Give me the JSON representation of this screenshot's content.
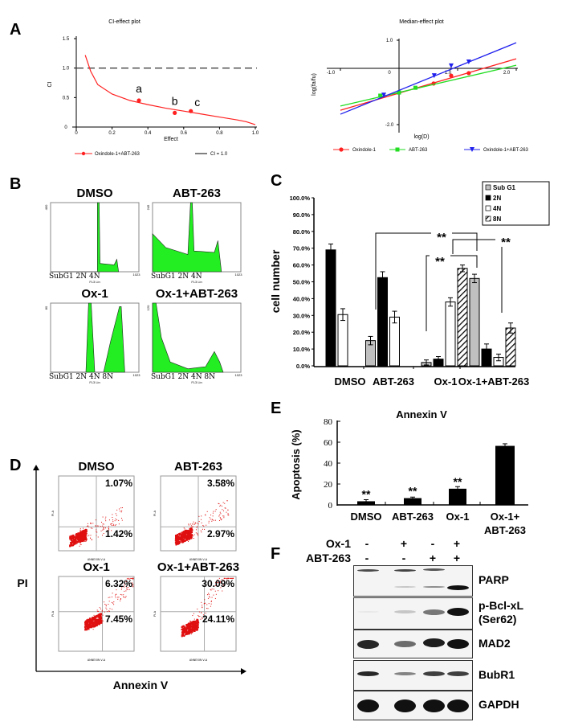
{
  "panels": {
    "A": "A",
    "B": "B",
    "C": "C",
    "D": "D",
    "E": "E",
    "F": "F"
  },
  "colors": {
    "red": "#ff2020",
    "green": "#22dd22",
    "blue": "#2020ee",
    "histogram_fill": "#22ee22",
    "scatter": "#e01010",
    "bar_gray": "#c0c0c0"
  },
  "chart_data": [
    {
      "id": "ci_effect",
      "type": "line",
      "title": "CI-effect plot",
      "xlabel": "Effect",
      "ylabel": "CI",
      "xlim": [
        0,
        1.0
      ],
      "ylim": [
        0,
        1.5
      ],
      "xticks": [
        "0",
        "0.2",
        "0.4",
        "0.6",
        "0.8",
        "1.0"
      ],
      "yticks": [
        "0",
        "0.5",
        "1.0",
        "1.5"
      ],
      "reference_line": {
        "y": 1.0,
        "style": "dashed",
        "legend": "CI = 1.0"
      },
      "series": [
        {
          "name": "Oxindole-1+ABT-263",
          "color": "#ff2020",
          "curve": [
            [
              0.05,
              1.22
            ],
            [
              0.08,
              0.95
            ],
            [
              0.12,
              0.72
            ],
            [
              0.2,
              0.56
            ],
            [
              0.3,
              0.45
            ],
            [
              0.4,
              0.38
            ],
            [
              0.5,
              0.32
            ],
            [
              0.6,
              0.27
            ],
            [
              0.7,
              0.22
            ],
            [
              0.8,
              0.17
            ],
            [
              0.9,
              0.12
            ],
            [
              0.95,
              0.09
            ],
            [
              1.0,
              0.04
            ]
          ],
          "points": [
            {
              "label": "a",
              "x": 0.35,
              "y": 0.45
            },
            {
              "label": "b",
              "x": 0.55,
              "y": 0.24
            },
            {
              "label": "c",
              "x": 0.64,
              "y": 0.27
            }
          ]
        }
      ],
      "legend": "bottom"
    },
    {
      "id": "median_effect",
      "type": "scatter",
      "title": "Median-effect plot",
      "xlabel": "log(D)",
      "ylabel": "log(fa/fu)",
      "xlim": [
        -1.0,
        2.0
      ],
      "ylim": [
        -2.0,
        1.0
      ],
      "xticks": [
        "-1.0",
        "0",
        "1.0",
        "2.0"
      ],
      "yticks": [
        "1.0",
        "-2.0"
      ],
      "series": [
        {
          "name": "Oxindole-1",
          "color": "#ff2020",
          "marker": "circle",
          "line": [
            [
              -1.0,
              -1.49
            ],
            [
              2.0,
              0.34
            ]
          ],
          "points": [
            [
              0.59,
              -0.54
            ],
            [
              0.89,
              -0.26
            ],
            [
              1.19,
              -0.17
            ]
          ]
        },
        {
          "name": "ABT-263",
          "color": "#22dd22",
          "marker": "square",
          "line": [
            [
              -1.0,
              -1.34
            ],
            [
              2.0,
              0.11
            ]
          ],
          "points": [
            [
              -0.32,
              -0.97
            ],
            [
              0.0,
              -0.86
            ],
            [
              0.28,
              -0.69
            ]
          ]
        },
        {
          "name": "Oxindole-1+ABT-263",
          "color": "#2020ee",
          "marker": "triangle-down",
          "line": [
            [
              -1.0,
              -1.63
            ],
            [
              2.0,
              0.91
            ]
          ],
          "points": [
            [
              -0.26,
              -0.95
            ],
            [
              0.6,
              -0.26
            ],
            [
              0.89,
              0.09
            ],
            [
              1.19,
              0.23
            ]
          ]
        }
      ],
      "legend": "bottom"
    },
    {
      "id": "cell_cycle",
      "type": "bar",
      "ylabel": "cell number",
      "ylim": [
        0,
        100
      ],
      "yticks": [
        "0.0%",
        "10.0%",
        "20.0%",
        "30.0%",
        "40.0%",
        "50.0%",
        "60.0%",
        "70.0%",
        "80.0%",
        "90.0%",
        "100.0%"
      ],
      "categories": [
        "DMSO",
        "ABT-263",
        "Ox-1",
        "Ox-1+ABT-263"
      ],
      "series": [
        {
          "name": "Sub G1",
          "fill": "#c0c0c0",
          "values": [
            null,
            15,
            2,
            52
          ],
          "errors": [
            null,
            2.5,
            1.5,
            2.5
          ]
        },
        {
          "name": "2N",
          "fill": "#000000",
          "values": [
            69,
            52.5,
            4,
            10
          ],
          "errors": [
            3.5,
            3.5,
            1.5,
            3
          ]
        },
        {
          "name": "4N",
          "fill": "#ffffff",
          "values": [
            30.5,
            29,
            38,
            5
          ],
          "errors": [
            3.5,
            3.5,
            2.5,
            2
          ]
        },
        {
          "name": "8N",
          "fill": "hatched",
          "values": [
            null,
            null,
            58,
            22.5
          ],
          "errors": [
            null,
            null,
            2,
            3
          ]
        }
      ],
      "significance": [
        "**",
        "**",
        "**"
      ],
      "legend": "top-right"
    },
    {
      "id": "annexin_bar",
      "type": "bar",
      "title": "Annexin V",
      "ylabel": "Apoptosis (%)",
      "ylim": [
        0,
        80
      ],
      "yticks": [
        "0",
        "20",
        "40",
        "60",
        "80"
      ],
      "categories": [
        "DMSO",
        "ABT-263",
        "Ox-1",
        "Ox-1+\nABT-263"
      ],
      "category_lines": [
        [
          "DMSO"
        ],
        [
          "ABT-263"
        ],
        [
          "Ox-1"
        ],
        [
          "Ox-1+",
          "ABT-263"
        ]
      ],
      "values": [
        3.5,
        6.5,
        15.5,
        56.5
      ],
      "errors": [
        1.5,
        1,
        2,
        2
      ],
      "annotations": [
        "**",
        "**",
        "**",
        ""
      ]
    }
  ],
  "histograms": {
    "panels": [
      {
        "title": "DMSO",
        "ymax": "400",
        "labels": "SubG1 2N 4N"
      },
      {
        "title": "ABT-263",
        "ymax": "245",
        "labels": "SubG1  2N  4N"
      },
      {
        "title": "Ox-1",
        "ymax": "80",
        "labels": "SubG1 2N    4N         8N"
      },
      {
        "title": "Ox-1+ABT-263",
        "ymax": "120",
        "labels": "SubG1 2N  4N         8N"
      }
    ],
    "xmax": "1023",
    "xaxis": "FL3 Lin"
  },
  "flow": {
    "yaxis": "PI",
    "xaxis": "Annexin V",
    "small_x": "ANNEXIN V-A",
    "small_y": "PI-A",
    "panels": [
      {
        "title": "DMSO",
        "ur": "1.07%",
        "lr": "1.42%"
      },
      {
        "title": "ABT-263",
        "ur": "3.58%",
        "lr": "2.97%"
      },
      {
        "title": "Ox-1",
        "ur": "6.32%",
        "lr": "7.45%"
      },
      {
        "title": "Ox-1+ABT-263",
        "ur": "30.09%",
        "lr": "24.11%"
      }
    ]
  },
  "western": {
    "rows": [
      {
        "label": "Ox-1",
        "values": [
          "-",
          "+",
          "-",
          "+"
        ]
      },
      {
        "label": "ABT-263",
        "values": [
          "-",
          "-",
          "+",
          "+"
        ]
      }
    ],
    "blots": [
      "PARP",
      "p-Bcl-xL\n(Ser62)",
      "MAD2",
      "BubR1",
      "GAPDH"
    ],
    "blot_lines": [
      [
        "PARP"
      ],
      [
        "p-Bcl-xL",
        "(Ser62)"
      ],
      [
        "MAD2"
      ],
      [
        "BubR1"
      ],
      [
        "GAPDH"
      ]
    ]
  }
}
